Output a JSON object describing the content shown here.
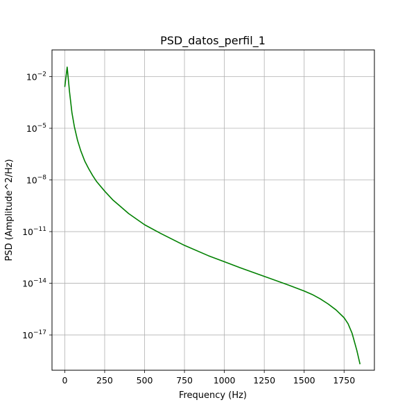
{
  "chart_data": {
    "type": "line",
    "title": "PSD_datos_perfil_1",
    "xlabel": "Frequency (Hz)",
    "ylabel": "PSD (Amplitude^2/Hz)",
    "y_scale": "log",
    "xlim": [
      -80,
      1940
    ],
    "ylim_exponent": [
      -19.05,
      -0.45
    ],
    "x_ticks": [
      0,
      250,
      500,
      750,
      1000,
      1250,
      1500,
      1750
    ],
    "x_tick_labels": [
      "0",
      "250",
      "500",
      "750",
      "1000",
      "1250",
      "1500",
      "1750"
    ],
    "y_tick_exponents": [
      -2,
      -5,
      -8,
      -11,
      -14,
      -17
    ],
    "y_tick_base": "10",
    "grid": true,
    "line_color": "#008000",
    "series": [
      {
        "name": "",
        "x": [
          0,
          15,
          30,
          45,
          60,
          80,
          100,
          125,
          150,
          175,
          200,
          250,
          300,
          350,
          400,
          500,
          600,
          750,
          900,
          1000,
          1100,
          1250,
          1400,
          1500,
          1550,
          1600,
          1650,
          1700,
          1750,
          1775,
          1800,
          1815,
          1830,
          1840,
          1850
        ],
        "y_log10": [
          -2.6,
          -1.45,
          -2.9,
          -4.1,
          -4.9,
          -5.7,
          -6.3,
          -6.9,
          -7.35,
          -7.75,
          -8.1,
          -8.65,
          -9.15,
          -9.55,
          -9.95,
          -10.6,
          -11.1,
          -11.8,
          -12.4,
          -12.75,
          -13.1,
          -13.6,
          -14.1,
          -14.45,
          -14.65,
          -14.9,
          -15.2,
          -15.55,
          -16.0,
          -16.35,
          -16.9,
          -17.4,
          -17.9,
          -18.3,
          -18.7
        ]
      }
    ]
  }
}
